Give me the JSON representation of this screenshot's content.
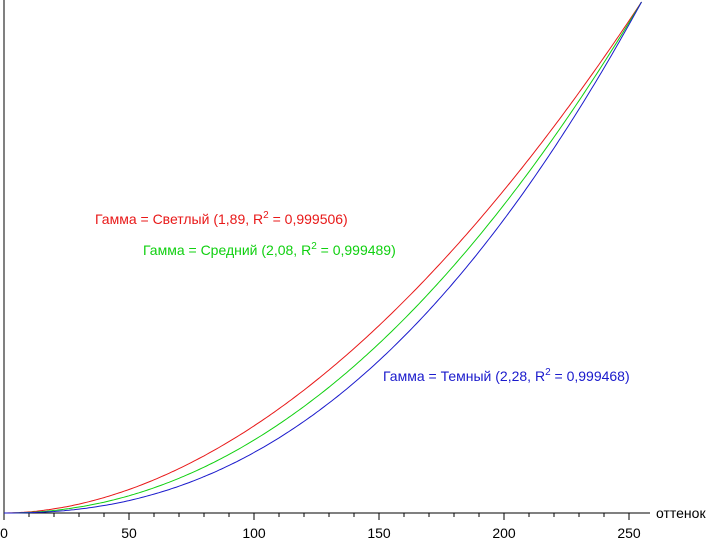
{
  "chart_data": {
    "type": "line",
    "title": "",
    "xlabel": "оттенок",
    "ylabel": "",
    "xlim": [
      0,
      255
    ],
    "ylim": [
      0,
      1
    ],
    "x_ticks": [
      "0",
      "50",
      "100",
      "150",
      "200",
      "250"
    ],
    "grid": false,
    "series": [
      {
        "name_prefix": "Гамма = Светлый (1,89, R",
        "name_sup": "2",
        "name_suffix": " = 0,999506)",
        "color": "#e81818",
        "gamma": 1.89
      },
      {
        "name_prefix": "Гамма = Средний (2,08, R",
        "name_sup": "2",
        "name_suffix": " = 0,999489)",
        "color": "#10d010",
        "gamma": 2.08
      },
      {
        "name_prefix": "Гамма = Темный (2,28, R",
        "name_sup": "2",
        "name_suffix": " = 0,999468)",
        "color": "#1a1acc",
        "gamma": 2.28
      }
    ]
  }
}
